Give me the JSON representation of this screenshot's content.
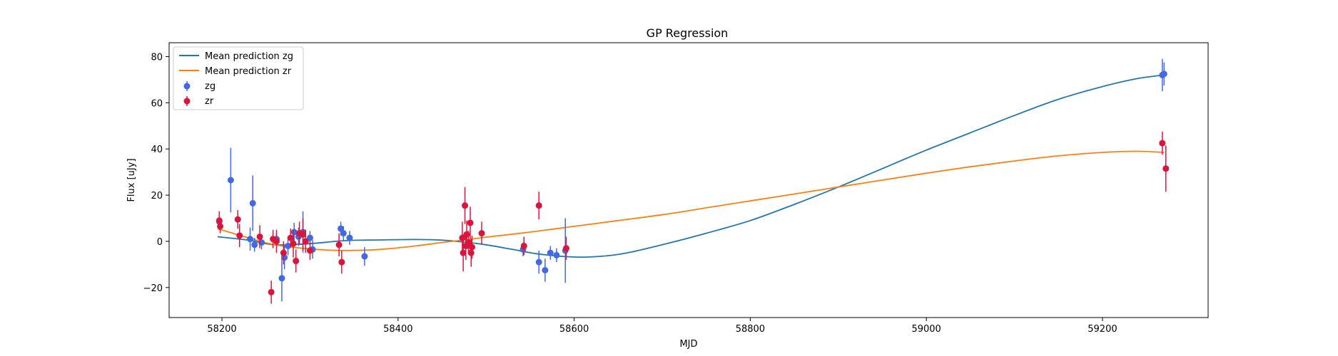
{
  "chart_data": {
    "type": "scatter",
    "title": "GP Regression",
    "xlabel": "MJD",
    "ylabel": "Flux [uJy]",
    "xlim": [
      58140,
      59320
    ],
    "ylim": [
      -33,
      86
    ],
    "xticks": [
      58200,
      58400,
      58600,
      58800,
      59000,
      59200
    ],
    "yticks": [
      -20,
      0,
      20,
      40,
      60,
      80
    ],
    "grid": false,
    "legend_position": "top-left",
    "legend": [
      {
        "label": "Mean prediction zg",
        "kind": "line",
        "color": "#1f77b4"
      },
      {
        "label": "Mean prediction zr",
        "kind": "line",
        "color": "#ff7f0e"
      },
      {
        "label": "zg",
        "kind": "errorbar",
        "color": "#4169e1"
      },
      {
        "label": "zr",
        "kind": "errorbar",
        "color": "#dc143c"
      }
    ],
    "lines": [
      {
        "name": "Mean prediction zg",
        "color": "#1f77b4",
        "x": [
          58195,
          58230,
          58260,
          58300,
          58340,
          58380,
          58420,
          58450,
          58480,
          58500,
          58530,
          58560,
          58600,
          58630,
          58660,
          58700,
          58750,
          58800,
          58850,
          58900,
          58950,
          59000,
          59050,
          59100,
          59150,
          59200,
          59240,
          59270
        ],
        "y": [
          2,
          0.5,
          -1.5,
          -1,
          0.3,
          0.6,
          0.8,
          0.5,
          -0.5,
          -1.5,
          -3.5,
          -5.5,
          -6.8,
          -6.5,
          -5,
          -1.5,
          3.5,
          9,
          16,
          23.5,
          31.5,
          39.5,
          47,
          54.5,
          61.5,
          67,
          70.5,
          72
        ]
      },
      {
        "name": "Mean prediction zr",
        "color": "#ff7f0e",
        "x": [
          58195,
          58230,
          58260,
          58300,
          58340,
          58380,
          58420,
          58450,
          58480,
          58500,
          58550,
          58600,
          58650,
          58700,
          58750,
          58800,
          58850,
          58900,
          58950,
          59000,
          59050,
          59100,
          59150,
          59200,
          59240,
          59270
        ],
        "y": [
          5.5,
          1.5,
          -1.5,
          -3.3,
          -4,
          -3.5,
          -2,
          -0.5,
          0.8,
          1.8,
          4,
          6.5,
          9,
          11.5,
          14.5,
          17.5,
          20.5,
          23.5,
          26.5,
          29.5,
          32.3,
          34.8,
          37,
          38.5,
          39,
          38.5
        ]
      }
    ],
    "series": [
      {
        "name": "zg",
        "color": "#4169e1",
        "points": [
          {
            "x": 58197,
            "y": 8.5,
            "err": 3
          },
          {
            "x": 58210,
            "y": 26.5,
            "err": 14
          },
          {
            "x": 58232,
            "y": 1,
            "err": 5
          },
          {
            "x": 58235,
            "y": 16.5,
            "err": 12
          },
          {
            "x": 58237,
            "y": -1.5,
            "err": 3
          },
          {
            "x": 58245,
            "y": -0.5,
            "err": 3
          },
          {
            "x": 58262,
            "y": 1,
            "err": 3
          },
          {
            "x": 58268,
            "y": -16,
            "err": 10
          },
          {
            "x": 58271,
            "y": -7,
            "err": 5
          },
          {
            "x": 58275,
            "y": -2,
            "err": 4
          },
          {
            "x": 58282,
            "y": 4,
            "err": 4
          },
          {
            "x": 58287,
            "y": 2,
            "err": 4
          },
          {
            "x": 58292,
            "y": 4,
            "err": 9
          },
          {
            "x": 58300,
            "y": 1.5,
            "err": 3
          },
          {
            "x": 58303,
            "y": -3.5,
            "err": 4
          },
          {
            "x": 58335,
            "y": 5.5,
            "err": 3
          },
          {
            "x": 58338,
            "y": 3.5,
            "err": 3
          },
          {
            "x": 58345,
            "y": 1.5,
            "err": 3
          },
          {
            "x": 58362,
            "y": -6.5,
            "err": 4
          },
          {
            "x": 58542,
            "y": -3.5,
            "err": 3
          },
          {
            "x": 58560,
            "y": -9,
            "err": 5
          },
          {
            "x": 58567,
            "y": -12.5,
            "err": 5
          },
          {
            "x": 58573,
            "y": -5,
            "err": 3
          },
          {
            "x": 58580,
            "y": -6,
            "err": 3
          },
          {
            "x": 58590,
            "y": -4,
            "err": 14
          },
          {
            "x": 59268,
            "y": 72,
            "err": 7
          },
          {
            "x": 59270,
            "y": 72.5,
            "err": 5
          }
        ]
      },
      {
        "name": "zr",
        "color": "#dc143c",
        "points": [
          {
            "x": 58197,
            "y": 9,
            "err": 4
          },
          {
            "x": 58198,
            "y": 6.5,
            "err": 3
          },
          {
            "x": 58218,
            "y": 9.5,
            "err": 4
          },
          {
            "x": 58220,
            "y": 2.5,
            "err": 5
          },
          {
            "x": 58243,
            "y": 2,
            "err": 5
          },
          {
            "x": 58256,
            "y": -22,
            "err": 5
          },
          {
            "x": 58258,
            "y": 1,
            "err": 4
          },
          {
            "x": 58262,
            "y": 0,
            "err": 5
          },
          {
            "x": 58270,
            "y": -5,
            "err": 5
          },
          {
            "x": 58278,
            "y": 1.5,
            "err": 4
          },
          {
            "x": 58281,
            "y": -1,
            "err": 6
          },
          {
            "x": 58284,
            "y": -8.5,
            "err": 5
          },
          {
            "x": 58288,
            "y": 3.5,
            "err": 5
          },
          {
            "x": 58292,
            "y": 3,
            "err": 7
          },
          {
            "x": 58295,
            "y": 0,
            "err": 5
          },
          {
            "x": 58300,
            "y": -4,
            "err": 4
          },
          {
            "x": 58333,
            "y": -1.5,
            "err": 5
          },
          {
            "x": 58336,
            "y": -9,
            "err": 5
          },
          {
            "x": 58473,
            "y": 1.5,
            "err": 7
          },
          {
            "x": 58474,
            "y": -5,
            "err": 8
          },
          {
            "x": 58476,
            "y": 15.5,
            "err": 8
          },
          {
            "x": 58477,
            "y": -2,
            "err": 6
          },
          {
            "x": 58478,
            "y": 3,
            "err": 6
          },
          {
            "x": 58480,
            "y": -0.5,
            "err": 5
          },
          {
            "x": 58482,
            "y": 8,
            "err": 7
          },
          {
            "x": 58483,
            "y": -5,
            "err": 6
          },
          {
            "x": 58484,
            "y": -2.5,
            "err": 5
          },
          {
            "x": 58495,
            "y": 3.5,
            "err": 5
          },
          {
            "x": 58543,
            "y": -2,
            "err": 4
          },
          {
            "x": 58560,
            "y": 15.5,
            "err": 6
          },
          {
            "x": 58591,
            "y": -3,
            "err": 5
          },
          {
            "x": 59268,
            "y": 42.5,
            "err": 5
          },
          {
            "x": 59272,
            "y": 31.5,
            "err": 10
          }
        ]
      }
    ]
  }
}
